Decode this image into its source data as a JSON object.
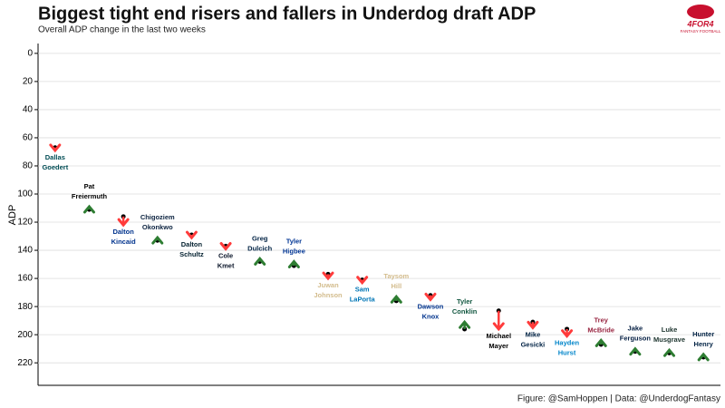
{
  "chart_data": {
    "type": "arrow",
    "title": "Biggest tight end risers and fallers in Underdog draft ADP",
    "subtitle": "Overall ADP change in the last two weeks",
    "y_label": "ADP",
    "caption": "Figure: @SamHoppen | Data: @UnderdogFantasy",
    "logo": {
      "brand": "4FOR4",
      "tagline": "FANTASY FOOTBALL"
    },
    "categories": [
      [
        "Dallas",
        "Goedert"
      ],
      [
        "Pat",
        "Freiermuth"
      ],
      [
        "Dalton",
        "Kincaid"
      ],
      [
        "Chigoziem",
        "Okonkwo"
      ],
      [
        "Dalton",
        "Schultz"
      ],
      [
        "Cole",
        "Kmet"
      ],
      [
        "Greg",
        "Dulcich"
      ],
      [
        "Tyler",
        "Higbee"
      ],
      [
        "Juwan",
        "Johnson"
      ],
      [
        "Sam",
        "LaPorta"
      ],
      [
        "Taysom",
        "Hill"
      ],
      [
        "Dawson",
        "Knox"
      ],
      [
        "Tyler",
        "Conklin"
      ],
      [
        "Michael",
        "Mayer"
      ],
      [
        "Mike",
        "Gesicki"
      ],
      [
        "Hayden",
        "Hurst"
      ],
      [
        "Trey",
        "McBride"
      ],
      [
        "Jake",
        "Ferguson"
      ],
      [
        "Luke",
        "Musgrave"
      ],
      [
        "Hunter",
        "Henry"
      ]
    ],
    "label_colors": [
      "#004C54",
      "#000000",
      "#00338D",
      "#0C2340",
      "#03202F",
      "#0B162A",
      "#002244",
      "#003594",
      "#D3BC8D",
      "#0076B6",
      "#D3BC8D",
      "#00338D",
      "#125740",
      "#000000",
      "#002244",
      "#0085CA",
      "#97233F",
      "#041E42",
      "#203731",
      "#002244"
    ],
    "start_values": [
      67,
      111,
      116,
      133,
      129,
      137,
      148,
      151,
      157,
      161,
      176,
      172,
      196,
      183,
      191,
      196,
      207,
      212,
      213,
      216
    ],
    "end_values": [
      69,
      109,
      122,
      131,
      131,
      139,
      146,
      148,
      160,
      163,
      173,
      175,
      191,
      196,
      195,
      201,
      204,
      210,
      211,
      214
    ],
    "riser_color": "#2e7d32",
    "faller_color": "#ff3b3b",
    "ylim": [
      -7,
      236
    ],
    "yticks": [
      0,
      20,
      40,
      60,
      80,
      100,
      120,
      140,
      160,
      180,
      200,
      220
    ],
    "y_reversed": true,
    "grid": true
  }
}
